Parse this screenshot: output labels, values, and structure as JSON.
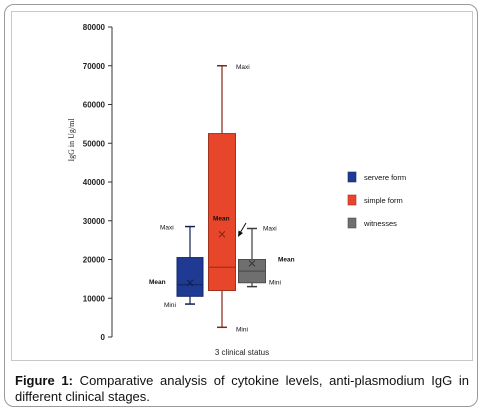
{
  "chart_data": {
    "type": "box",
    "ylabel": "IgG in Ug/ml",
    "xlabel": "3 clinical status",
    "ylim": [
      0,
      80000
    ],
    "yticks": [
      0,
      10000,
      20000,
      30000,
      40000,
      50000,
      60000,
      70000,
      80000
    ],
    "legend_position": "right",
    "grid": false,
    "series": [
      {
        "name": "servere form",
        "color": "#1f3a93",
        "min": 8500,
        "q1": 10500,
        "median": 13500,
        "q3": 20500,
        "max": 28500,
        "mean": 14000
      },
      {
        "name": "simple form",
        "color": "#e8462b",
        "min": 2500,
        "q1": 12000,
        "median": 18000,
        "q3": 52500,
        "max": 70000,
        "mean": 26500
      },
      {
        "name": "witnesses",
        "color": "#6f6f6f",
        "min": 13000,
        "q1": 14000,
        "median": 17000,
        "q3": 20000,
        "max": 28000,
        "mean": 19000
      }
    ],
    "annotations": [
      {
        "text": "Maxi",
        "series": 0,
        "at": "max"
      },
      {
        "text": "Mean",
        "series": 0,
        "at": "mean"
      },
      {
        "text": "Mini",
        "series": 0,
        "at": "min"
      },
      {
        "text": "Maxi",
        "series": 1,
        "at": "max"
      },
      {
        "text": "Mean",
        "series": 1,
        "at": "mean"
      },
      {
        "text": "Mini",
        "series": 1,
        "at": "min"
      },
      {
        "text": "Maxi",
        "series": 2,
        "at": "max"
      },
      {
        "text": "Mean",
        "series": 2,
        "at": "mean"
      },
      {
        "text": "Mini",
        "series": 2,
        "at": "min"
      }
    ]
  },
  "caption": {
    "label": "Figure 1:",
    "text": " Comparative analysis of cytokine levels, anti-plasmodium IgG in different clinical stages."
  }
}
